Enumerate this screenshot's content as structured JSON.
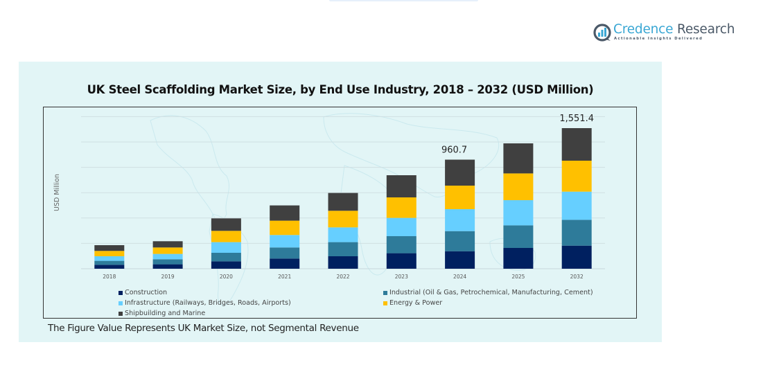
{
  "brand": {
    "name_part1": "Credence",
    "name_part2": " Research",
    "tagline": "Actionable Insights Delivered",
    "colors": {
      "primary": "#3aa7d4",
      "dark": "#4b5968"
    }
  },
  "footnote": "The Figure Value Represents UK Market Size, not Segmental Revenue",
  "chart_data": {
    "type": "bar",
    "stacked": true,
    "title": "UK Steel Scaffolding Market Size, by End Use Industry, 2018 – 2032 (USD Million)",
    "xlabel": "",
    "ylabel": "USD Million",
    "grid": true,
    "legend_position": "bottom",
    "categories": [
      "2018",
      "2019",
      "2020",
      "2021",
      "2022",
      "2023",
      "2024",
      "2025",
      "2032"
    ],
    "series": [
      {
        "name": "Construction",
        "color": "#002060",
        "values": [
          34.8,
          39.0,
          65.3,
          89.7,
          109.8,
          136.6,
          154.3,
          189.0,
          254.5
        ]
      },
      {
        "name": "Industrial (Oil & Gas, Petrochemical, Manufacturing, Cement)",
        "color": "#2e7b9a",
        "values": [
          34.8,
          44.5,
          75.0,
          97.6,
          124.4,
          150.1,
          176.8,
          205.4,
          285.1
        ]
      },
      {
        "name": "Infrastructure (Railways, Bridges, Roads, Airports)",
        "color": "#66cfff",
        "values": [
          40.3,
          47.0,
          93.9,
          109.8,
          129.9,
          161.0,
          193.4,
          229.3,
          311.0
        ]
      },
      {
        "name": "Energy & Power",
        "color": "#ffc000",
        "values": [
          47.0,
          56.7,
          99.4,
          126.3,
          146.4,
          180.6,
          207.4,
          243.2,
          341.6
        ]
      },
      {
        "name": "Shipbuilding and Marine",
        "color": "#404040",
        "values": [
          50.6,
          54.9,
          109.8,
          134.2,
          156.8,
          195.2,
          228.8,
          273.4,
          359.2
        ]
      }
    ],
    "annotations": [
      {
        "category": "2024",
        "text": "960.7"
      },
      {
        "category": "2032",
        "text": "1,551.4"
      }
    ],
    "ylim": [
      0,
      1800
    ]
  }
}
